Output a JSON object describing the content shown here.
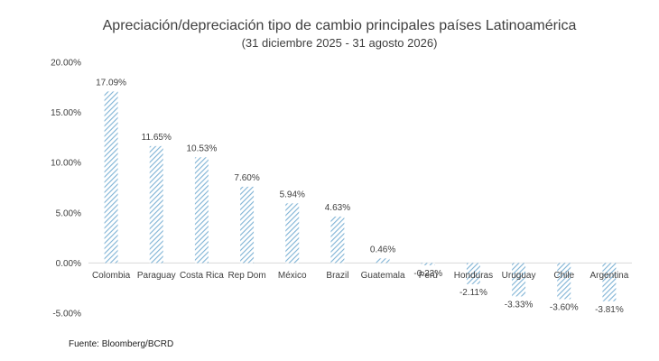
{
  "chart_data": {
    "type": "bar",
    "title": "Apreciación/depreciación tipo de cambio principales países Latinoamérica",
    "subtitle": "(31 diciembre 2025 - 31 agosto 2026)",
    "categories": [
      "Colombia",
      "Paraguay",
      "Costa Rica",
      "Rep Dom",
      "México",
      "Brazil",
      "Guatemala",
      "Perú",
      "Honduras",
      "Uruguay",
      "Chile",
      "Argentina"
    ],
    "values": [
      17.09,
      11.65,
      10.53,
      7.6,
      5.94,
      4.63,
      0.46,
      -0.23,
      -2.11,
      -3.33,
      -3.6,
      -3.81
    ],
    "data_labels": [
      "17.09%",
      "11.65%",
      "10.53%",
      "7.60%",
      "5.94%",
      "4.63%",
      "0.46%",
      "-0.23%",
      "-2.11%",
      "-3.33%",
      "-3.60%",
      "-3.81%"
    ],
    "yticks": [
      20,
      15,
      10,
      5,
      0,
      -5
    ],
    "ytick_labels": [
      "20.00%",
      "15.00%",
      "10.00%",
      "5.00%",
      "0.00%",
      "-5.00%"
    ],
    "ylim": [
      -5,
      20
    ],
    "grid": false,
    "bar_color": "#7fb3d5",
    "bar_pattern": "diagonal-hatch"
  },
  "source": "Fuente: Bloomberg/BCRD"
}
